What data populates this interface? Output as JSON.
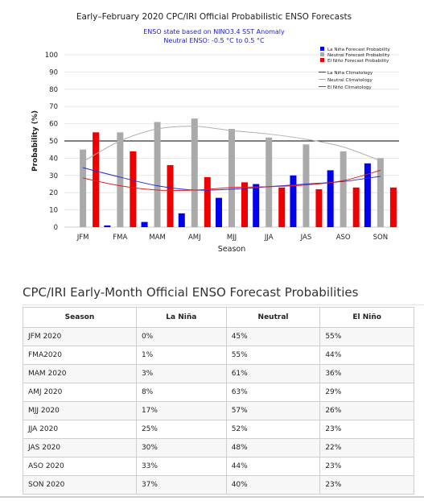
{
  "chart_data": {
    "type": "bar",
    "title": "Early–February 2020 CPC/IRI Official Probabilistic ENSO Forecasts",
    "subtitle_lines": [
      "ENSO state based on NINO3.4 SST Anomaly",
      "Neutral ENSO: -0.5 °C to 0.5 °C"
    ],
    "xlabel": "Season",
    "ylabel": "Probability (%)",
    "ylim": [
      0,
      100
    ],
    "yticks": [
      0,
      10,
      20,
      30,
      40,
      50,
      60,
      70,
      80,
      90,
      100
    ],
    "reference_line": 50,
    "categories": [
      "JFM",
      "FMA",
      "MAM",
      "AMJ",
      "MJJ",
      "JJA",
      "JAS",
      "ASO",
      "SON"
    ],
    "series": [
      {
        "name": "La Niña Forecast Probability",
        "color": "#0000ee",
        "values": [
          0,
          1,
          3,
          8,
          17,
          25,
          30,
          33,
          37
        ]
      },
      {
        "name": "Neutral Forecast Probability",
        "color": "#aaaaaa",
        "values": [
          45,
          55,
          61,
          63,
          57,
          52,
          48,
          44,
          40
        ]
      },
      {
        "name": "El Niño Forecast Probability",
        "color": "#ee0000",
        "values": [
          55,
          44,
          36,
          29,
          26,
          23,
          22,
          23,
          23
        ]
      }
    ],
    "climatology": [
      {
        "name": "La Niña Climatology",
        "color": "#2a2ae0",
        "values": [
          34.5,
          29,
          24,
          21.5,
          22,
          23.5,
          25,
          26.5,
          29.5
        ]
      },
      {
        "name": "Neutral Climatology",
        "color": "#b0b0b0",
        "values": [
          38,
          50,
          57,
          58.5,
          56,
          54,
          51,
          46.5,
          38.5
        ]
      },
      {
        "name": "El Niño Climatology",
        "color": "#e02020",
        "values": [
          28.5,
          24,
          21.5,
          21.5,
          23,
          23.5,
          24.5,
          27,
          33
        ]
      }
    ],
    "legend_position": "top-right",
    "grid": true
  },
  "table": {
    "heading": "CPC/IRI Early-Month Official ENSO Forecast Probabilities",
    "columns": [
      "Season",
      "La Niña",
      "Neutral",
      "El Niño"
    ],
    "rows": [
      [
        "JFM 2020",
        "0%",
        "45%",
        "55%"
      ],
      [
        "FMA2020",
        "1%",
        "55%",
        "44%"
      ],
      [
        "MAM 2020",
        "3%",
        "61%",
        "36%"
      ],
      [
        "AMJ 2020",
        "8%",
        "63%",
        "29%"
      ],
      [
        "MJJ 2020",
        "17%",
        "57%",
        "26%"
      ],
      [
        "JJA 2020",
        "25%",
        "52%",
        "23%"
      ],
      [
        "JAS 2020",
        "30%",
        "48%",
        "22%"
      ],
      [
        "ASO 2020",
        "33%",
        "44%",
        "23%"
      ],
      [
        "SON 2020",
        "37%",
        "40%",
        "23%"
      ]
    ]
  }
}
